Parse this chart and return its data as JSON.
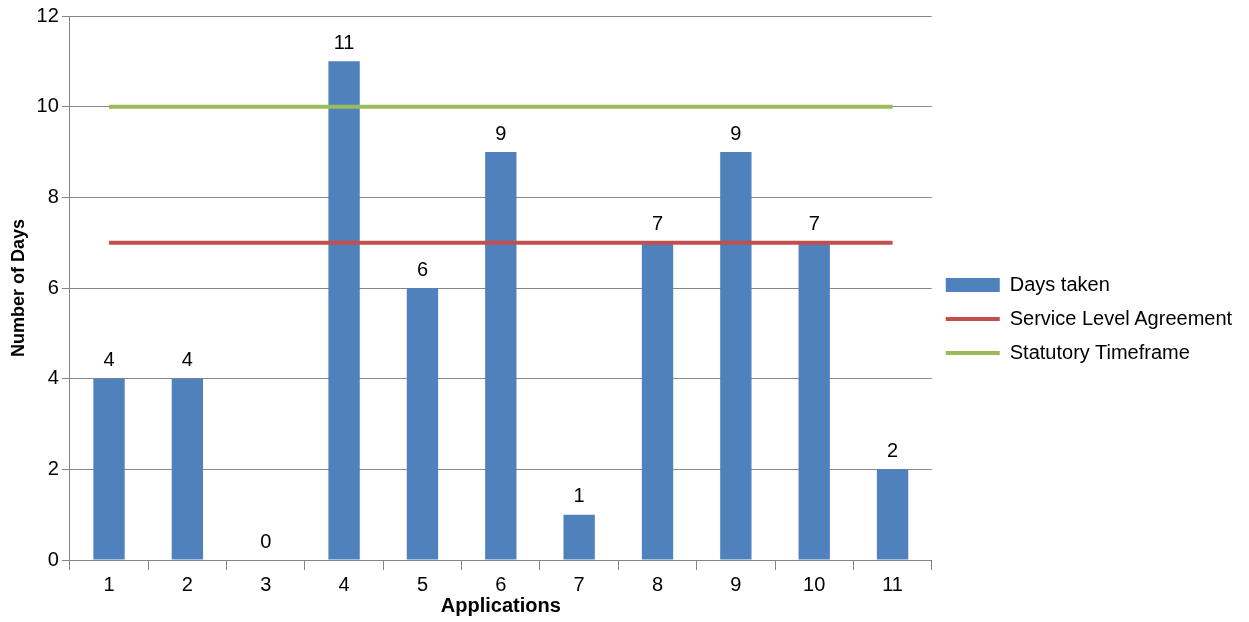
{
  "chart_data": {
    "type": "bar",
    "xlabel": "Applications",
    "ylabel": "Number of Days",
    "categories": [
      "1",
      "2",
      "3",
      "4",
      "5",
      "6",
      "7",
      "8",
      "9",
      "10",
      "11"
    ],
    "series": [
      {
        "name": "Days taken",
        "color": "#4f81bd",
        "values": [
          4,
          4,
          0,
          11,
          6,
          9,
          1,
          7,
          9,
          7,
          2
        ],
        "value_labels": [
          "4",
          "4",
          "0",
          "11",
          "6",
          "9",
          "1",
          "7",
          "9",
          "7",
          "2"
        ]
      },
      {
        "name": "Service Level Agreement",
        "type": "line",
        "color": "#c0504d",
        "values": [
          7,
          7,
          7,
          7,
          7,
          7,
          7,
          7,
          7,
          7,
          7
        ]
      },
      {
        "name": "Statutory Timeframe",
        "type": "line",
        "color": "#9bbb59",
        "values": [
          10,
          10,
          10,
          10,
          10,
          10,
          10,
          10,
          10,
          10,
          10
        ]
      }
    ],
    "ylim": [
      0,
      12
    ],
    "yticks": [
      0,
      2,
      4,
      6,
      8,
      10,
      12
    ],
    "grid": "y",
    "legend": "right",
    "marker": "none",
    "line_style": "solid"
  }
}
